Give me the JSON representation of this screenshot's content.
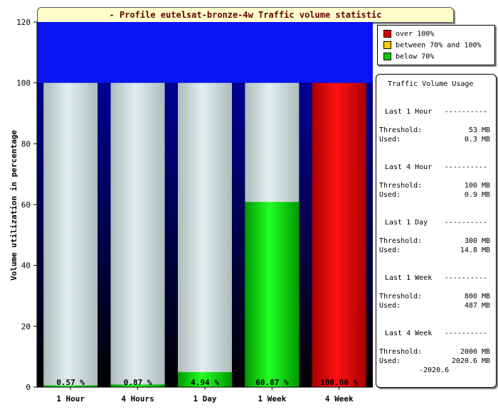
{
  "title": "- Profile eutelsat-bronze-4w Traffic volume statistic",
  "colors": {
    "over": "#ff0000",
    "mid": "#ffcc00",
    "below": "#00cc00",
    "used_red": "#dd0000",
    "used_green": "#00dd00",
    "capacity_gray": "#c8d8d8"
  },
  "legend": [
    {
      "label": "over 100%",
      "color": "#dd0000"
    },
    {
      "label": "between 70% and 100%",
      "color": "#ffcc00"
    },
    {
      "label": "below 70%",
      "color": "#00cc00"
    }
  ],
  "chart_data": {
    "type": "bar",
    "title": "- Profile eutelsat-bronze-4w Traffic volume statistic",
    "ylabel": "Volume utilization in percentage",
    "xlabel": "",
    "ylim": [
      0,
      120
    ],
    "yticks": [
      0,
      20,
      40,
      60,
      80,
      100,
      120
    ],
    "categories": [
      "1 Hour",
      "4 Hours",
      "1 Day",
      "1 Week",
      "4 Week"
    ],
    "values": [
      0.57,
      0.87,
      4.94,
      60.87,
      100.0
    ],
    "labels": [
      "0.57 %",
      "0.87 %",
      "4.94 %",
      "60.87 %",
      "100.00 %"
    ],
    "capacity": 100,
    "colors": [
      "#00cc00",
      "#00cc00",
      "#00cc00",
      "#00cc00",
      "#dd0000"
    ]
  },
  "usage": {
    "title": "Traffic Volume Usage",
    "dash": "----------",
    "threshold_label": "Threshold:",
    "used_label": "Used:",
    "periods": [
      {
        "name": "Last 1 Hour",
        "threshold": "53 MB",
        "used": "0.3 MB"
      },
      {
        "name": "Last 4 Hour",
        "threshold": "100 MB",
        "used": "0.9 MB"
      },
      {
        "name": "Last 1 Day",
        "threshold": "300 MB",
        "used": "14.8 MB"
      },
      {
        "name": "Last 1 Week",
        "threshold": "800 MB",
        "used": "487 MB"
      },
      {
        "name": "Last 4 Week",
        "threshold": "2000 MB",
        "used": "2020.6 MB",
        "extra": "-2020.6"
      }
    ]
  }
}
